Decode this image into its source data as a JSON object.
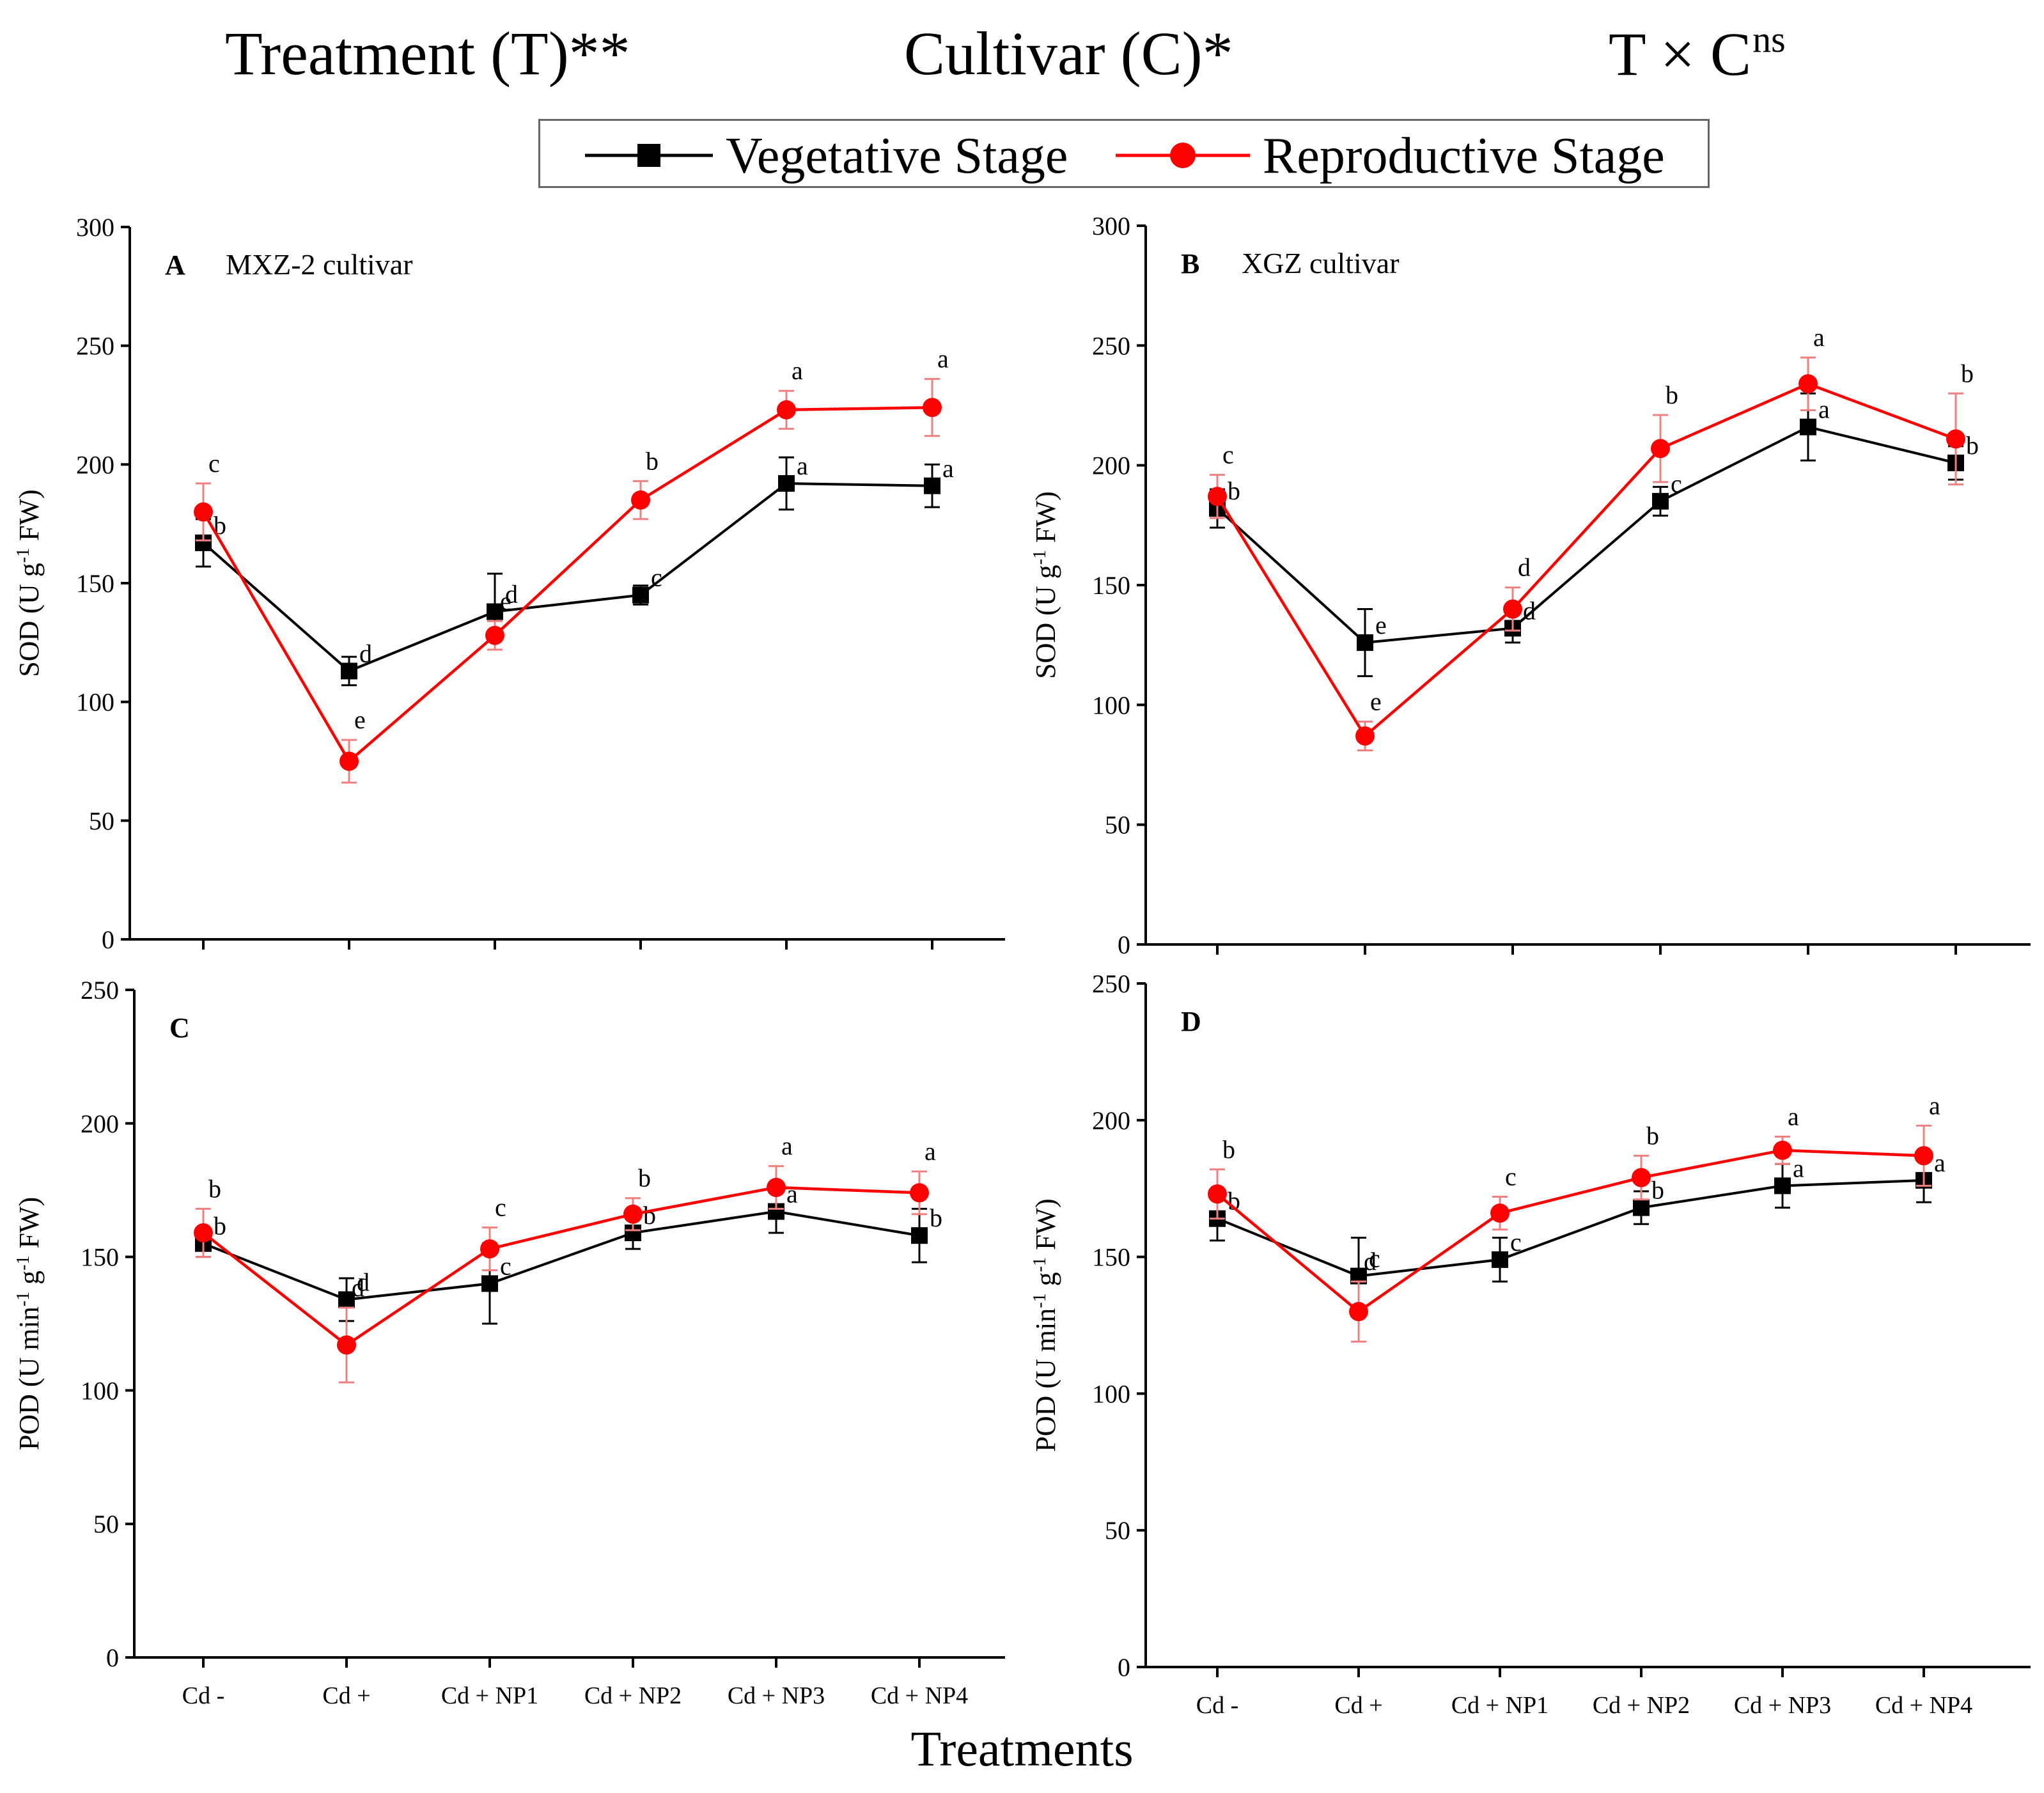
{
  "header": {
    "treatment": "Treatment (T)**",
    "cultivar": "Cultivar (C)*",
    "interaction": "T × C",
    "interaction_sup": "ns"
  },
  "legend": {
    "vegetative": "Vegetative Stage",
    "reproductive": "Reproductive Stage"
  },
  "x_axis_title": "Treatments",
  "colors": {
    "vegetative": "#000000",
    "reproductive": "#ff0000",
    "reproductive_error": "#f08080"
  },
  "chart_data": [
    {
      "id": "A",
      "type": "line",
      "panel_letter": "A",
      "panel_title": "MXZ-2 cultivar",
      "ylabel_main": "SOD (U g",
      "ylabel_sup": "-1",
      "ylabel_end": " FW)",
      "ylim": [
        0,
        300
      ],
      "yticks": [
        0,
        50,
        100,
        150,
        200,
        250,
        300
      ],
      "categories": [
        "Cd -",
        "Cd +",
        "Cd + NP1",
        "Cd + NP2",
        "Cd + NP3",
        "Cd + NP4"
      ],
      "show_category_labels": false,
      "series": [
        {
          "name": "Vegetative Stage",
          "values": [
            167,
            113,
            138,
            145,
            192,
            191
          ],
          "errors": [
            10,
            6,
            16,
            4,
            11,
            9
          ],
          "letters": [
            "b",
            "d",
            "d",
            "c",
            "a",
            "a"
          ]
        },
        {
          "name": "Reproductive Stage",
          "values": [
            180,
            75,
            128,
            185,
            223,
            224
          ],
          "errors": [
            12,
            9,
            6,
            8,
            8,
            12
          ],
          "letters": [
            "c",
            "e",
            "e",
            "b",
            "a",
            "a"
          ]
        }
      ]
    },
    {
      "id": "B",
      "type": "line",
      "panel_letter": "B",
      "panel_title": "XGZ cultivar",
      "ylabel_main": "SOD (U g",
      "ylabel_sup": "-1",
      "ylabel_end": " FW)",
      "ylim": [
        0,
        300
      ],
      "yticks": [
        0,
        50,
        100,
        150,
        200,
        250,
        300
      ],
      "categories": [
        "Cd -",
        "Cd +",
        "Cd + NP1",
        "Cd + NP2",
        "Cd + NP3",
        "Cd + NP4"
      ],
      "show_category_labels": false,
      "series": [
        {
          "name": "Vegetative Stage",
          "values": [
            182,
            126,
            132,
            185,
            216,
            201
          ],
          "errors": [
            8,
            14,
            6,
            6,
            14,
            7
          ],
          "letters": [
            "b",
            "e",
            "d",
            "c",
            "a",
            "b"
          ]
        },
        {
          "name": "Reproductive Stage",
          "values": [
            187,
            87,
            140,
            207,
            234,
            211
          ],
          "errors": [
            9,
            6,
            9,
            14,
            11,
            19
          ],
          "letters": [
            "c",
            "e",
            "d",
            "b",
            "a",
            "b"
          ]
        }
      ]
    },
    {
      "id": "C",
      "type": "line",
      "panel_letter": "C",
      "panel_title": "",
      "ylabel_main": "POD (U min",
      "ylabel_sup": "-1",
      "ylabel_mid": " g",
      "ylabel_sup2": "-1",
      "ylabel_end": " FW)",
      "ylim": [
        0,
        250
      ],
      "yticks": [
        0,
        50,
        100,
        150,
        200,
        250
      ],
      "categories": [
        "Cd -",
        "Cd +",
        "Cd + NP1",
        "Cd + NP2",
        "Cd + NP3",
        "Cd + NP4"
      ],
      "show_category_labels": true,
      "series": [
        {
          "name": "Vegetative Stage",
          "values": [
            155,
            134,
            140,
            159,
            167,
            158
          ],
          "errors": [
            5,
            8,
            15,
            6,
            8,
            10
          ],
          "letters": [
            "b",
            "d",
            "c",
            "b",
            "a",
            "b"
          ]
        },
        {
          "name": "Reproductive Stage",
          "values": [
            159,
            117,
            153,
            166,
            176,
            174
          ],
          "errors": [
            9,
            14,
            8,
            6,
            8,
            8
          ],
          "letters": [
            "b",
            "d",
            "c",
            "b",
            "a",
            "a"
          ]
        }
      ]
    },
    {
      "id": "D",
      "type": "line",
      "panel_letter": "D",
      "panel_title": "",
      "ylabel_main": "POD (U min",
      "ylabel_sup": "-1",
      "ylabel_mid": " g",
      "ylabel_sup2": "-1",
      "ylabel_end": " FW)",
      "ylim": [
        0,
        250
      ],
      "yticks": [
        0,
        50,
        100,
        150,
        200,
        250
      ],
      "categories": [
        "Cd -",
        "Cd +",
        "Cd + NP1",
        "Cd + NP2",
        "Cd + NP3",
        "Cd + NP4"
      ],
      "show_category_labels": true,
      "series": [
        {
          "name": "Vegetative Stage",
          "values": [
            164,
            143,
            149,
            168,
            176,
            178
          ],
          "errors": [
            8,
            14,
            8,
            6,
            8,
            8
          ],
          "letters": [
            "b",
            "c",
            "c",
            "b",
            "a",
            "a"
          ]
        },
        {
          "name": "Reproductive Stage",
          "values": [
            173,
            130,
            166,
            179,
            189,
            187
          ],
          "errors": [
            9,
            11,
            6,
            8,
            5,
            11
          ],
          "letters": [
            "b",
            "d",
            "c",
            "b",
            "a",
            "a"
          ]
        }
      ]
    }
  ]
}
